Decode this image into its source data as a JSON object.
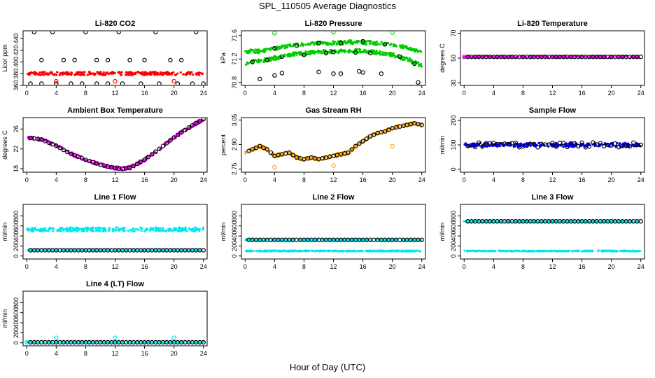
{
  "figure": {
    "title": "SPL_110505  Average Diagnostics",
    "xlabel": "Hour of Day (UTC)"
  },
  "colors": {
    "red": "#ff0000",
    "green": "#00cc00",
    "magenta": "#e000e0",
    "orange": "#ffa500",
    "blue": "#0000ff",
    "cyan": "#00e5ee",
    "black": "#000000"
  },
  "chart_data": [
    {
      "type": "scatter",
      "title": "Li-820 CO2",
      "ylabel": "Licor ppm",
      "x_ticks": [
        0,
        4,
        8,
        12,
        16,
        20,
        24
      ],
      "y_ticks": [
        360,
        380,
        400,
        "420",
        440
      ],
      "y_tick_labels": [
        "360",
        "380",
        "400",
        "420",
        "440"
      ],
      "xlim": [
        -0.5,
        24.5
      ],
      "ylim": [
        360,
        453
      ],
      "series": [
        {
          "role": "band",
          "color": "red",
          "x_range": [
            0,
            24
          ],
          "y_min": 377.5,
          "y_max": 383
        },
        {
          "role": "open",
          "color": "black",
          "x": [
            1,
            2,
            3.5,
            5,
            6.5,
            8,
            9.5,
            11,
            12.5,
            14,
            16,
            17.5,
            19.5,
            21,
            23
          ],
          "values": [
            451,
            403,
            451,
            403,
            403,
            451,
            403,
            403,
            451,
            403,
            403,
            451,
            403,
            403,
            451
          ]
        },
        {
          "role": "open",
          "color": "black",
          "x": [
            0.5,
            2,
            4,
            6,
            7.5,
            9.5,
            11,
            13,
            15.5,
            18,
            20.5,
            22.5,
            24
          ],
          "values": [
            363,
            363,
            363,
            363,
            363,
            363,
            363,
            363,
            363,
            363,
            363,
            363,
            363
          ]
        },
        {
          "role": "open",
          "color": "red",
          "x": [
            4,
            12,
            20
          ],
          "values": [
            367,
            367,
            367
          ]
        }
      ]
    },
    {
      "type": "scatter",
      "title": "Li-820 Pressure",
      "ylabel": "kPa",
      "x_ticks": [
        0,
        4,
        8,
        12,
        16,
        20,
        24
      ],
      "y_ticks": [
        70.8,
        71.2,
        71.6
      ],
      "y_tick_labels": [
        "70.8",
        "71.2",
        "71.6"
      ],
      "xlim": [
        -0.5,
        24.5
      ],
      "ylim": [
        70.75,
        71.68
      ],
      "series": [
        {
          "role": "band",
          "color": "green",
          "x": [
            0,
            2,
            4,
            6,
            8,
            10,
            12,
            14,
            16,
            18,
            20,
            22,
            24
          ],
          "y_min": [
            71.3,
            71.3,
            71.35,
            71.4,
            71.42,
            71.44,
            71.44,
            71.45,
            71.45,
            71.44,
            71.42,
            71.37,
            71.28
          ],
          "y_max": [
            71.36,
            71.37,
            71.41,
            71.45,
            71.48,
            71.5,
            71.5,
            71.52,
            71.52,
            71.5,
            71.47,
            71.42,
            71.33
          ]
        },
        {
          "role": "band",
          "color": "green",
          "x": [
            0,
            2,
            4,
            6,
            8,
            10,
            12,
            14,
            16,
            18,
            20,
            22,
            24
          ],
          "y_min": [
            71.1,
            71.14,
            71.18,
            71.24,
            71.27,
            71.29,
            71.3,
            71.31,
            71.31,
            71.28,
            71.24,
            71.16,
            71.06
          ],
          "y_max": [
            71.16,
            71.2,
            71.25,
            71.3,
            71.33,
            71.35,
            71.36,
            71.37,
            71.37,
            71.34,
            71.3,
            71.23,
            71.12
          ]
        },
        {
          "role": "open",
          "color": "green",
          "x": [
            4,
            12,
            20
          ],
          "values": [
            71.64,
            71.66,
            71.65
          ]
        },
        {
          "role": "open",
          "color": "black",
          "x": [
            1,
            3,
            4,
            5,
            7,
            8,
            10,
            11,
            12,
            13,
            15,
            16,
            17,
            19,
            21,
            23
          ],
          "values": [
            71.15,
            71.18,
            71.38,
            71.24,
            71.43,
            71.27,
            71.47,
            71.3,
            71.32,
            71.47,
            71.31,
            71.5,
            71.3,
            71.45,
            71.24,
            71.12
          ]
        },
        {
          "role": "open",
          "color": "black",
          "x": [
            2,
            4,
            5,
            10,
            12,
            13,
            15.5,
            16,
            18.5,
            23.5
          ],
          "values": [
            70.86,
            70.92,
            70.96,
            70.98,
            70.95,
            70.95,
            70.99,
            70.97,
            70.95,
            70.8
          ]
        }
      ]
    },
    {
      "type": "scatter",
      "title": "Li-820 Temperature",
      "ylabel": "degrees C",
      "x_ticks": [
        0,
        4,
        8,
        12,
        16,
        20,
        24
      ],
      "y_ticks": [
        30,
        50,
        70
      ],
      "y_tick_labels": [
        "30",
        "50",
        "70"
      ],
      "xlim": [
        -0.5,
        24.5
      ],
      "ylim": [
        28,
        72
      ],
      "series": [
        {
          "role": "band",
          "color": "magenta",
          "x_range": [
            0,
            24
          ],
          "y_min": 50.3,
          "y_max": 51.7
        },
        {
          "role": "open",
          "color": "magenta",
          "x": [
            0
          ],
          "values": [
            51
          ]
        },
        {
          "role": "open-dense",
          "color": "black",
          "x_range": [
            0.5,
            24
          ],
          "step": 0.5,
          "value": 51
        }
      ]
    },
    {
      "type": "scatter",
      "title": "Ambient Box Temperature",
      "ylabel": "degrees C",
      "x_ticks": [
        0,
        4,
        8,
        12,
        16,
        20,
        24
      ],
      "y_ticks": [
        18,
        22,
        26
      ],
      "y_tick_labels": [
        "18",
        "22",
        "26"
      ],
      "xlim": [
        -0.5,
        24.5
      ],
      "ylim": [
        17.3,
        28.3
      ],
      "series": [
        {
          "role": "curve-band",
          "color": "magenta",
          "x": [
            0,
            2,
            4,
            6,
            8,
            10,
            12,
            13,
            14,
            16,
            18,
            20,
            22,
            24
          ],
          "values": [
            24.3,
            23.9,
            22.6,
            21.0,
            19.8,
            18.8,
            18.1,
            18.0,
            18.2,
            19.8,
            22.0,
            24.3,
            26.3,
            28.0
          ]
        },
        {
          "role": "open-on-curve",
          "color": "black",
          "x_range": [
            0.5,
            24
          ],
          "step": 0.5
        }
      ]
    },
    {
      "type": "scatter",
      "title": "Gas Stream RH",
      "ylabel": "percent",
      "x_ticks": [
        0,
        4,
        8,
        12,
        16,
        20,
        24
      ],
      "y_ticks": [
        2.75,
        2.9,
        3.05
      ],
      "y_tick_labels": [
        "2.75",
        "2.90",
        "3.05"
      ],
      "xlim": [
        -0.5,
        24.5
      ],
      "ylim": [
        2.73,
        3.065
      ],
      "series": [
        {
          "role": "curve-band",
          "color": "orange",
          "x": [
            0,
            1,
            2,
            3,
            4,
            5,
            6,
            7,
            8,
            9,
            10,
            11,
            12,
            13,
            14,
            15,
            16,
            17,
            18,
            19,
            20,
            21,
            22,
            23,
            24
          ],
          "values": [
            2.85,
            2.87,
            2.89,
            2.87,
            2.83,
            2.84,
            2.85,
            2.82,
            2.81,
            2.82,
            2.81,
            2.82,
            2.83,
            2.84,
            2.85,
            2.89,
            2.92,
            2.95,
            2.97,
            2.98,
            3.0,
            3.01,
            3.02,
            3.03,
            3.02
          ]
        },
        {
          "role": "open-on-curve",
          "color": "black",
          "x_range": [
            0.5,
            24
          ],
          "step": 0.5
        },
        {
          "role": "open",
          "color": "orange",
          "x": [
            4,
            12,
            20
          ],
          "values": [
            2.76,
            2.77,
            2.89
          ]
        }
      ]
    },
    {
      "type": "scatter",
      "title": "Sample Flow",
      "ylabel": "ml/min",
      "x_ticks": [
        0,
        4,
        8,
        12,
        16,
        20,
        24
      ],
      "y_ticks": [
        0,
        100,
        200
      ],
      "y_tick_labels": [
        "0",
        "100",
        "200"
      ],
      "xlim": [
        -0.5,
        24.5
      ],
      "ylim": [
        -12,
        212
      ],
      "series": [
        {
          "role": "band",
          "color": "blue",
          "x_range": [
            0,
            24
          ],
          "y_min": 92,
          "y_max": 108
        },
        {
          "role": "open-dense",
          "color": "black",
          "x_range": [
            0.5,
            24
          ],
          "step": 0.5,
          "value": 100,
          "jitter": 10
        }
      ]
    },
    {
      "type": "scatter",
      "title": "Line 1 Flow",
      "ylabel": "ml/min",
      "x_ticks": [
        0,
        4,
        8,
        12,
        16,
        20,
        24
      ],
      "y_ticks": [
        0,
        200,
        400,
        600,
        800
      ],
      "y_tick_labels": [
        "0",
        "200",
        "400",
        "600",
        "800"
      ],
      "xlim": [
        -0.5,
        24.5
      ],
      "ylim": [
        -60,
        1030
      ],
      "series": [
        {
          "role": "band",
          "color": "cyan",
          "x_range": [
            0,
            24
          ],
          "y_min": 490,
          "y_max": 570
        },
        {
          "role": "band",
          "color": "cyan",
          "x_range": [
            0,
            24
          ],
          "y_min": 108,
          "y_max": 122
        },
        {
          "role": "open-dense",
          "color": "black",
          "x_range": [
            0.5,
            24
          ],
          "step": 0.5,
          "value": 115
        }
      ]
    },
    {
      "type": "scatter",
      "title": "Line 2 Flow",
      "ylabel": "ml/min",
      "x_ticks": [
        0,
        4,
        8,
        12,
        16,
        20,
        24
      ],
      "y_ticks": [
        0,
        200,
        400,
        600,
        800
      ],
      "y_tick_labels": [
        "0",
        "200",
        "400",
        "600",
        "800"
      ],
      "xlim": [
        -0.5,
        24.5
      ],
      "ylim": [
        -60,
        1030
      ],
      "series": [
        {
          "role": "band",
          "color": "cyan",
          "x_range": [
            0,
            24
          ],
          "y_min": 312,
          "y_max": 335
        },
        {
          "role": "band",
          "color": "cyan",
          "x_range": [
            0,
            24
          ],
          "y_min": 92,
          "y_max": 108
        },
        {
          "role": "open-dense",
          "color": "black",
          "x_range": [
            0.5,
            24
          ],
          "step": 0.5,
          "value": 322
        }
      ]
    },
    {
      "type": "scatter",
      "title": "Line 3 Flow",
      "ylabel": "ml/min",
      "x_ticks": [
        0,
        4,
        8,
        12,
        16,
        20,
        24
      ],
      "y_ticks": [
        0,
        200,
        400,
        600,
        800
      ],
      "y_tick_labels": [
        "0",
        "200",
        "400",
        "600",
        "800"
      ],
      "xlim": [
        -0.5,
        24.5
      ],
      "ylim": [
        -60,
        1030
      ],
      "series": [
        {
          "role": "band",
          "color": "cyan",
          "x_range": [
            0,
            24
          ],
          "y_min": 680,
          "y_max": 705
        },
        {
          "role": "band",
          "color": "cyan",
          "x_range": [
            0,
            24
          ],
          "y_min": 92,
          "y_max": 108
        },
        {
          "role": "open-dense",
          "color": "black",
          "x_range": [
            0.5,
            24
          ],
          "step": 0.5,
          "value": 692
        }
      ]
    },
    {
      "type": "scatter",
      "title": "Line 4 (LT) Flow",
      "ylabel": "ml/min",
      "x_ticks": [
        0,
        4,
        8,
        12,
        16,
        20,
        24
      ],
      "y_ticks": [
        0,
        200,
        400,
        600,
        800
      ],
      "y_tick_labels": [
        "0",
        "200",
        "400",
        "600",
        "800"
      ],
      "xlim": [
        -0.5,
        24.5
      ],
      "ylim": [
        -60,
        1030
      ],
      "series": [
        {
          "role": "band",
          "color": "cyan",
          "x_range": [
            0,
            24
          ],
          "y_min": 5,
          "y_max": 15
        },
        {
          "role": "open",
          "color": "cyan",
          "x": [
            0,
            4,
            12,
            20
          ],
          "values": [
            10,
            100,
            100,
            100
          ]
        },
        {
          "role": "open-dense",
          "color": "black",
          "x_range": [
            0.5,
            24
          ],
          "step": 0.5,
          "value": 10
        }
      ]
    }
  ]
}
